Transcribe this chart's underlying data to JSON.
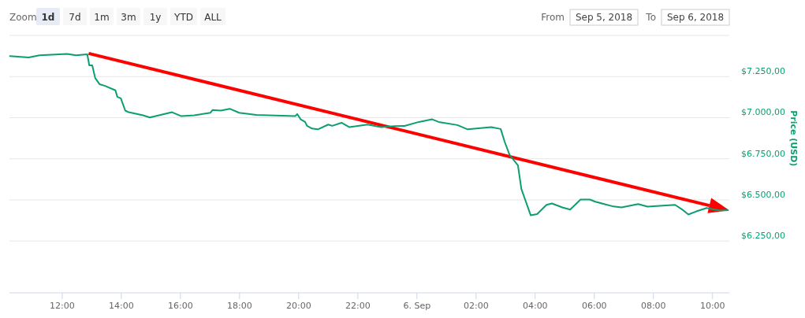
{
  "chart_data": {
    "type": "line",
    "ylabel": "Price (USD)",
    "annotations": [
      "Zoom",
      "1d",
      "7d",
      "1m",
      "3m",
      "1y",
      "YTD",
      "ALL",
      "From",
      "Sep 5, 2018",
      "To",
      "Sep 6, 2018"
    ],
    "x": [
      "2018-09-05T10:14",
      "2018-09-05T10:52",
      "2018-09-05T11:14",
      "2018-09-05T12:10",
      "2018-09-05T12:28",
      "2018-09-05T12:51",
      "2018-09-05T12:55",
      "2018-09-05T13:01",
      "2018-09-05T13:07",
      "2018-09-05T13:16",
      "2018-09-05T13:27",
      "2018-09-05T13:48",
      "2018-09-05T13:52",
      "2018-09-05T13:59",
      "2018-09-05T14:08",
      "2018-09-05T14:15",
      "2018-09-05T14:44",
      "2018-09-05T14:58",
      "2018-09-05T15:43",
      "2018-09-05T16:02",
      "2018-09-05T16:28",
      "2018-09-05T17:01",
      "2018-09-05T17:05",
      "2018-09-05T17:22",
      "2018-09-05T17:40",
      "2018-09-05T17:59",
      "2018-09-05T18:34",
      "2018-09-05T19:53",
      "2018-09-05T19:57",
      "2018-09-05T20:04",
      "2018-09-05T20:13",
      "2018-09-05T20:17",
      "2018-09-05T20:27",
      "2018-09-05T20:39",
      "2018-09-05T21:00",
      "2018-09-05T21:08",
      "2018-09-05T21:27",
      "2018-09-05T21:43",
      "2018-09-05T22:20",
      "2018-09-05T22:47",
      "2018-09-05T23:14",
      "2018-09-05T23:35",
      "2018-09-06T00:04",
      "2018-09-06T00:31",
      "2018-09-06T00:44",
      "2018-09-06T01:22",
      "2018-09-06T01:43",
      "2018-09-06T02:31",
      "2018-09-06T02:50",
      "2018-09-06T02:58",
      "2018-09-06T03:08",
      "2018-09-06T03:25",
      "2018-09-06T03:32",
      "2018-09-06T03:51",
      "2018-09-06T04:04",
      "2018-09-06T04:23",
      "2018-09-06T04:34",
      "2018-09-06T04:55",
      "2018-09-06T05:11",
      "2018-09-06T05:32",
      "2018-09-06T05:51",
      "2018-09-06T06:02",
      "2018-09-06T06:36",
      "2018-09-06T06:55",
      "2018-09-06T07:29",
      "2018-09-06T07:48",
      "2018-09-06T08:44",
      "2018-09-06T09:00",
      "2018-09-06T09:11",
      "2018-09-06T09:27",
      "2018-09-06T09:48",
      "2018-09-06T10:15",
      "2018-09-06T10:31"
    ],
    "series": [
      {
        "color": "#0c9e72",
        "values": [
          7374,
          7366,
          7379,
          7388,
          7379,
          7385,
          7318,
          7318,
          7241,
          7203,
          7193,
          7166,
          7126,
          7118,
          7043,
          7033,
          7014,
          7001,
          7033,
          7009,
          7014,
          7030,
          7046,
          7043,
          7054,
          7030,
          7017,
          7009,
          7022,
          6990,
          6974,
          6950,
          6934,
          6929,
          6958,
          6950,
          6969,
          6942,
          6958,
          6942,
          6948,
          6950,
          6974,
          6990,
          6974,
          6955,
          6929,
          6942,
          6931,
          6854,
          6774,
          6710,
          6566,
          6406,
          6414,
          6470,
          6478,
          6454,
          6441,
          6502,
          6502,
          6489,
          6462,
          6454,
          6475,
          6459,
          6470,
          6438,
          6411,
          6430,
          6451,
          6435,
          6438
        ]
      }
    ],
    "xlim": [
      "2018-09-05T10:13",
      "2018-09-06T10:34"
    ],
    "xticks": [
      {
        "value": "2018-09-05T12:00",
        "label": "12:00"
      },
      {
        "value": "2018-09-05T14:00",
        "label": "14:00"
      },
      {
        "value": "2018-09-05T16:00",
        "label": "16:00"
      },
      {
        "value": "2018-09-05T18:00",
        "label": "18:00"
      },
      {
        "value": "2018-09-05T20:00",
        "label": "20:00"
      },
      {
        "value": "2018-09-05T22:00",
        "label": "22:00"
      },
      {
        "value": "2018-09-06T00:00",
        "label": "6. Sep"
      },
      {
        "value": "2018-09-06T02:00",
        "label": "02:00"
      },
      {
        "value": "2018-09-06T04:00",
        "label": "04:00"
      },
      {
        "value": "2018-09-06T06:00",
        "label": "06:00"
      },
      {
        "value": "2018-09-06T08:00",
        "label": "08:00"
      },
      {
        "value": "2018-09-06T10:00",
        "label": "10:00"
      }
    ],
    "ylim": [
      5935,
      7500
    ],
    "yticks": [
      {
        "value": 6250,
        "label": "$6.250,00"
      },
      {
        "value": 6500,
        "label": "$6.500,00"
      },
      {
        "value": 6750,
        "label": "$6.750,00"
      },
      {
        "value": 7000,
        "label": "$7.000,00"
      },
      {
        "value": 7250,
        "label": "$7.250,00"
      }
    ],
    "grid": "y",
    "marker": "none",
    "line_style": "solid"
  }
}
